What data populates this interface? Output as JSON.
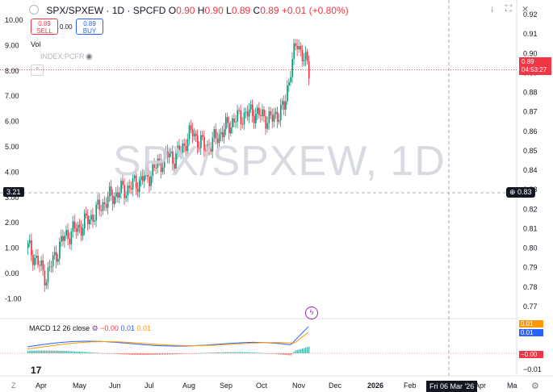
{
  "header": {
    "title": "SPX/SPXEW · 1D · SPCFD",
    "ohlc": [
      {
        "label": "O",
        "value": "0.90"
      },
      {
        "label": "H",
        "value": "0.90"
      },
      {
        "label": "L",
        "value": "0.89"
      },
      {
        "label": "C",
        "value": "0.89"
      },
      {
        "label": "",
        "value": "+0.01 (+0.80%)"
      }
    ],
    "sell": {
      "price": "0.89",
      "label": "SELL"
    },
    "spread": "0.00",
    "buy": {
      "price": "0.89",
      "label": "BUY"
    },
    "vol_label": "Vol",
    "symbol_label": "INDEX:PCFR"
  },
  "watermark": "SPX/SPXEW, 1D",
  "left_axis": [
    "10.00",
    "9.00",
    "8.00",
    "7.00",
    "6.00",
    "5.00",
    "4.00",
    "3.00",
    "2.00",
    "1.00",
    "0.00",
    "-1.00"
  ],
  "right_axis": [
    "0.92",
    "0.91",
    "0.90",
    "0.89",
    "0.88",
    "0.87",
    "0.86",
    "0.85",
    "0.84",
    "0.83",
    "0.82",
    "0.81",
    "0.80",
    "0.79",
    "0.78",
    "0.77"
  ],
  "last_price": {
    "value": "0.89",
    "countdown": "04:53:27"
  },
  "crosshair": {
    "right_value": "0.83",
    "left_value": "3.21",
    "date": "Fri 06 Mar '26"
  },
  "time_axis": [
    "Apr",
    "May",
    "Jun",
    "Jul",
    "Aug",
    "Sep",
    "Oct",
    "Nov",
    "Dec",
    "2026",
    "Feb",
    "Apr",
    "Ma"
  ],
  "macd": {
    "title": "MACD 12 26 close",
    "values": [
      "−0.00",
      "0.01",
      "0.01"
    ],
    "right_axis": [
      "0.01",
      "0.01",
      "−0.00",
      "−0.01"
    ]
  },
  "icons": {
    "top": [
      "down-arrow-icon",
      "expand-icon",
      "close-icon"
    ],
    "flash": "flash-icon",
    "settings": "gear-icon",
    "logo": "tradingview-logo-icon"
  },
  "colors": {
    "up": "#089981",
    "down": "#f23645",
    "macd": "#2962ff",
    "signal": "#ff9800",
    "crosshair": "#131722"
  },
  "chart_data": {
    "type": "candlestick",
    "x_axis": "daily dates Mar 2025 – Nov 2025",
    "main_series_right": {
      "ylim": [
        0.765,
        0.925
      ],
      "last": 0.89,
      "closes": [
        0.8,
        0.796,
        0.79,
        0.785,
        0.793,
        0.8,
        0.806,
        0.808,
        0.81,
        0.812,
        0.815,
        0.818,
        0.822,
        0.825,
        0.827,
        0.829,
        0.83,
        0.832,
        0.834,
        0.836,
        0.838,
        0.842,
        0.845,
        0.848,
        0.846,
        0.85,
        0.856,
        0.86,
        0.854,
        0.852,
        0.853,
        0.858,
        0.86,
        0.864,
        0.866,
        0.868,
        0.869,
        0.87,
        0.868,
        0.867,
        0.866,
        0.87,
        0.872,
        0.893,
        0.905,
        0.9,
        0.89
      ]
    },
    "macd": {
      "macd_last": -0.0,
      "signal_last": 0.01,
      "hist_last": 0.01
    }
  },
  "ui_text": {
    "tv": "17",
    "z": "Z"
  }
}
